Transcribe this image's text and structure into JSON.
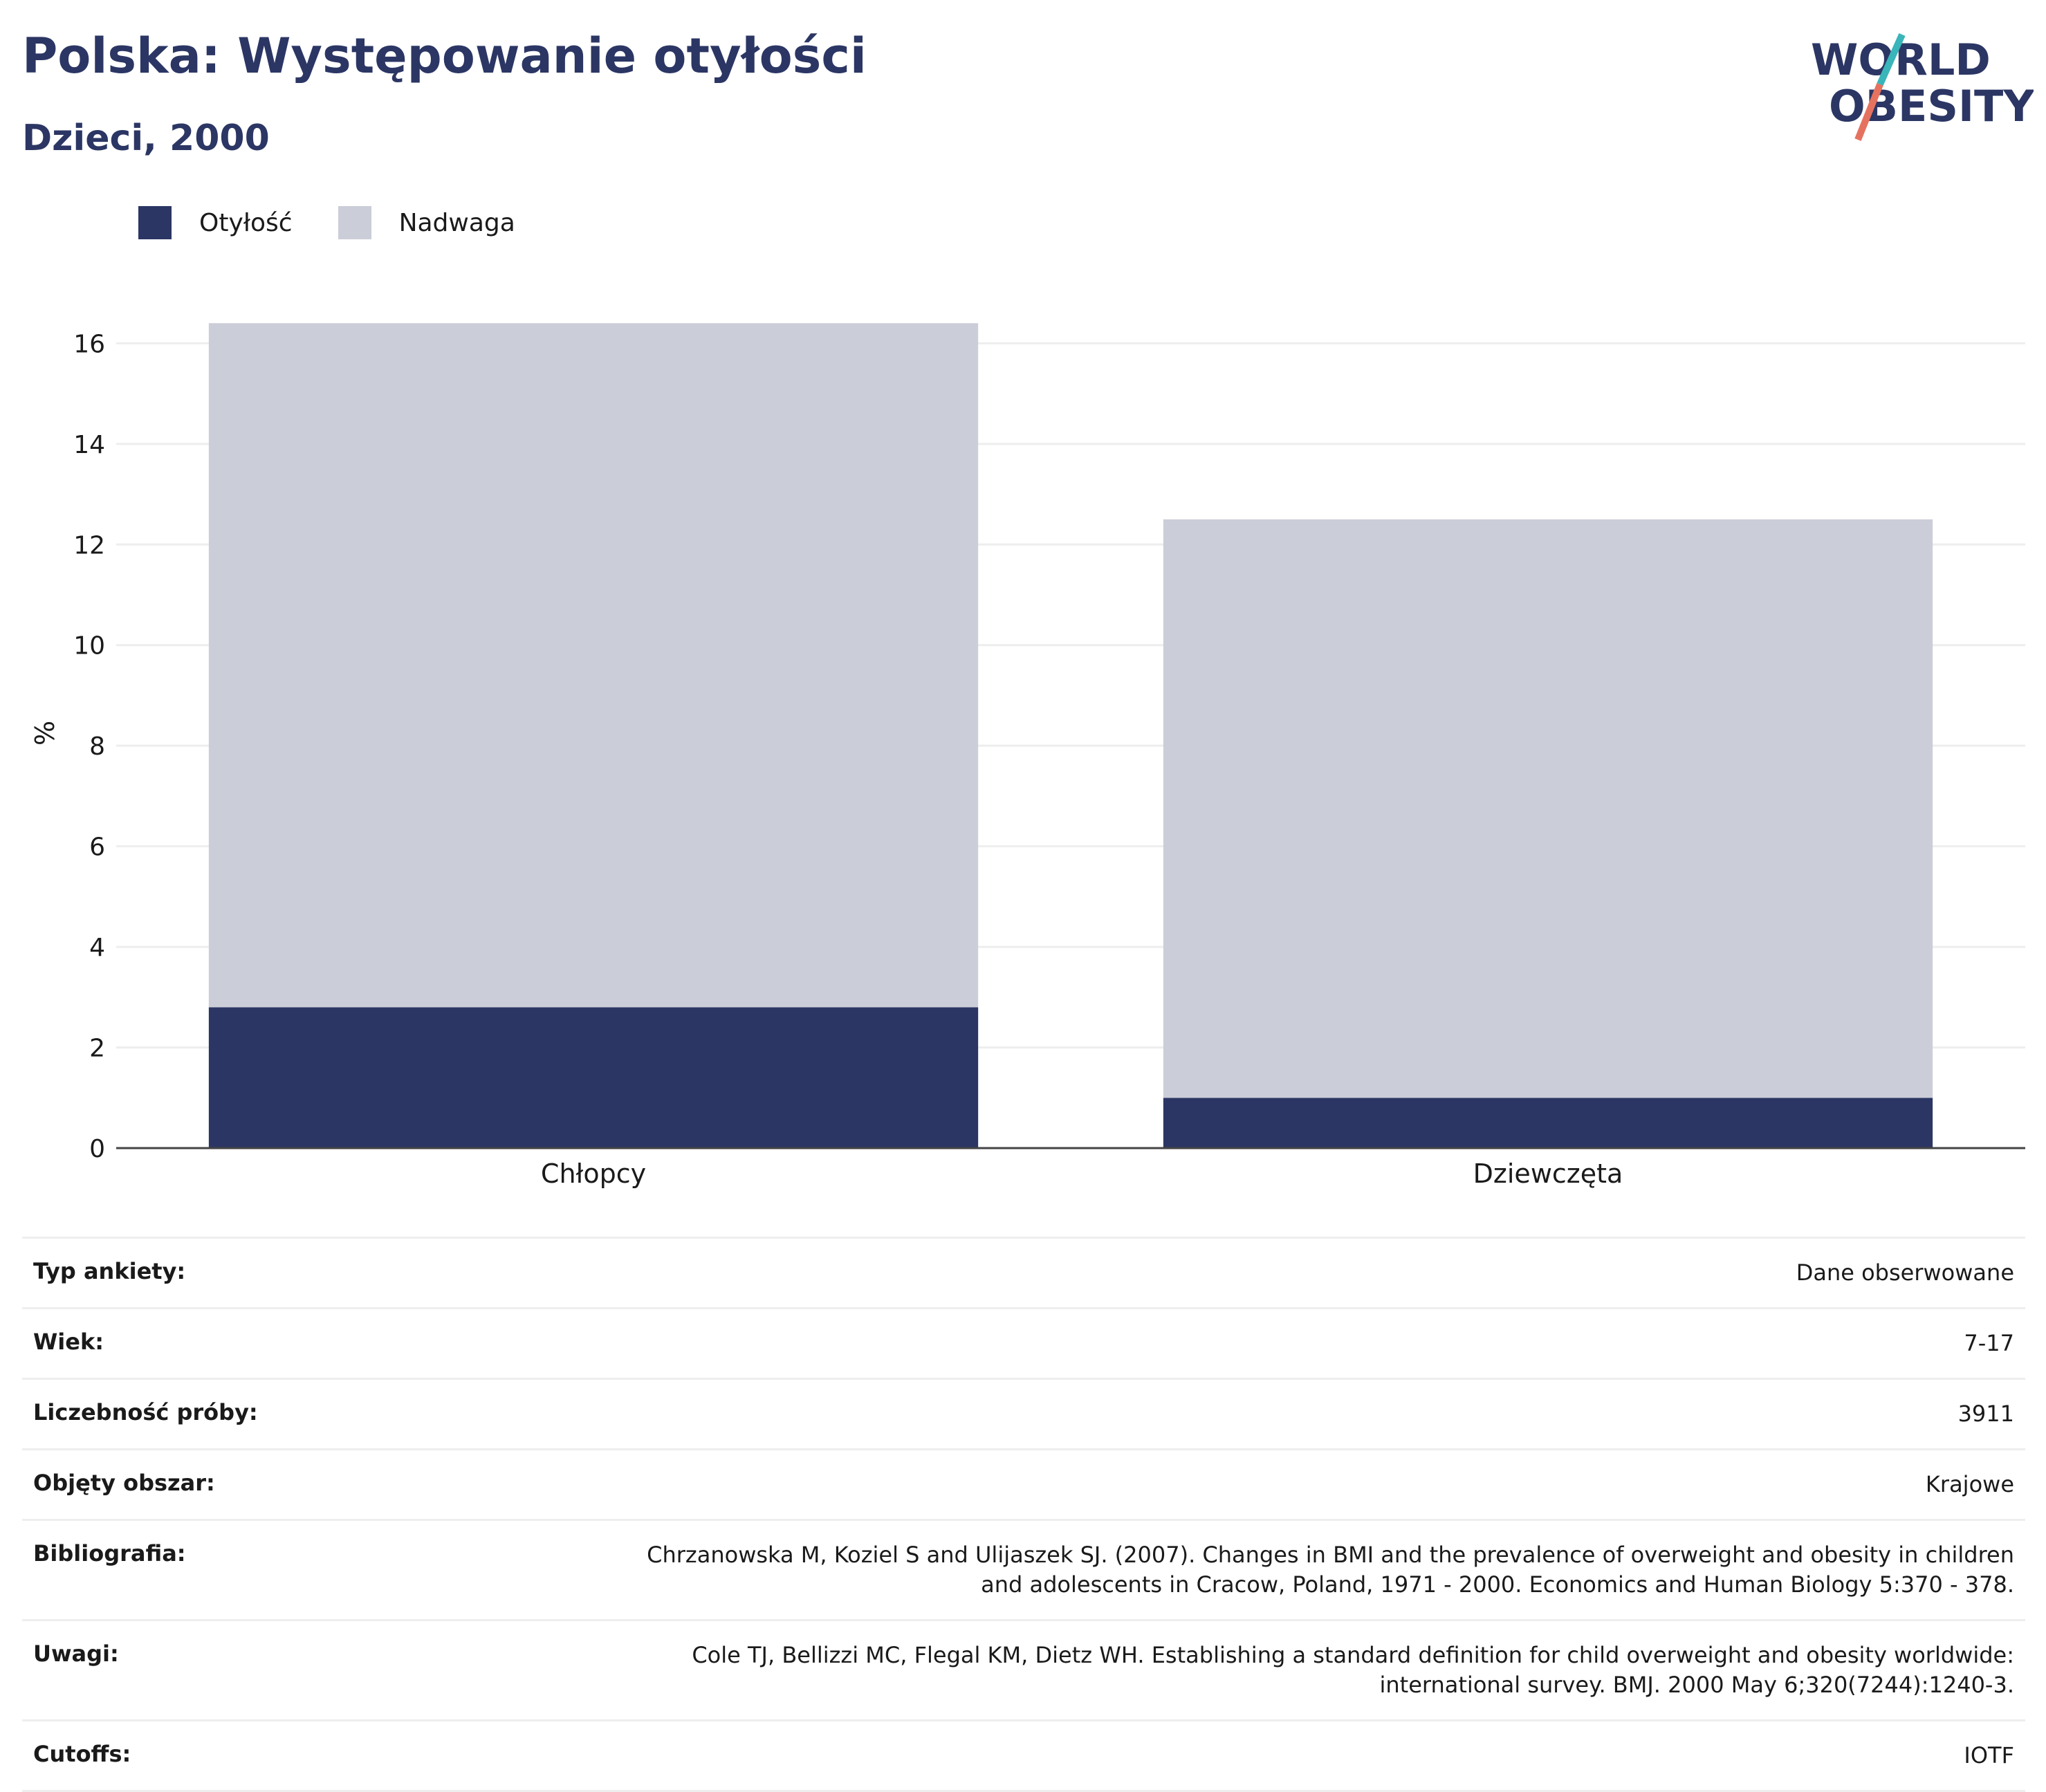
{
  "header": {
    "title": "Polska: Występowanie otyłości",
    "subtitle": "Dzieci, 2000"
  },
  "logo": {
    "line1": "WORLD",
    "line2": "OBESITY",
    "icon": "world-obesity-logo"
  },
  "colors": {
    "obesity": "#2b3664",
    "overweight": "#cbcdd8",
    "brand": "#2b3664",
    "accent_teal": "#3ab5b9",
    "accent_coral": "#e5725f"
  },
  "chart_data": {
    "type": "bar",
    "stacked": true,
    "categories": [
      "Chłopcy",
      "Dziewczęta"
    ],
    "series": [
      {
        "name": "Otyłość",
        "values": [
          2.8,
          1.0
        ]
      },
      {
        "name": "Nadwaga",
        "values": [
          13.6,
          11.5
        ]
      }
    ],
    "ylabel": "%",
    "ylim": [
      0,
      16.5
    ],
    "yticks": [
      0,
      2,
      4,
      6,
      8,
      10,
      12,
      14,
      16
    ],
    "grid": true,
    "legend": "top-left"
  },
  "info": [
    {
      "label": "Typ ankiety:",
      "value": "Dane obserwowane"
    },
    {
      "label": "Wiek:",
      "value": "7-17"
    },
    {
      "label": "Liczebność próby:",
      "value": "3911"
    },
    {
      "label": "Objęty obszar:",
      "value": "Krajowe"
    },
    {
      "label": "Bibliografia:",
      "value": "Chrzanowska M, Koziel S and Ulijaszek SJ. (2007). Changes in BMI and the prevalence of overweight and obesity in children and adolescents in Cracow, Poland, 1971 - 2000. Economics and Human Biology 5:370 - 378."
    },
    {
      "label": "Uwagi:",
      "value": "Cole TJ, Bellizzi MC, Flegal KM, Dietz WH. Establishing a standard definition for child overweight and obesity worldwide: international survey. BMJ. 2000 May 6;320(7244):1240-3."
    },
    {
      "label": "Cutoffs:",
      "value": "IOTF"
    }
  ]
}
